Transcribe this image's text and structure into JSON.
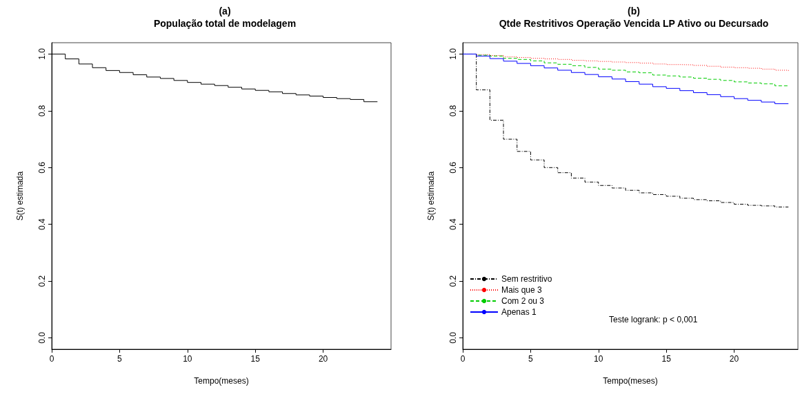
{
  "chart_data": [
    {
      "type": "step",
      "title": "(a)",
      "subtitle": "População total de modelagem",
      "xlabel": "Tempo(meses)",
      "ylabel": "S(t) estimada",
      "xlim": [
        0,
        25
      ],
      "ylim": [
        -0.04,
        1.04
      ],
      "xticks": [
        0,
        5,
        10,
        15,
        20
      ],
      "yticks": [
        {
          "value": 0,
          "label": "0.0"
        },
        {
          "value": 0.2,
          "label": "0.2"
        },
        {
          "value": 0.4,
          "label": "0.4"
        },
        {
          "value": 0.6,
          "label": "0.6"
        },
        {
          "value": 0.8,
          "label": "0.8"
        },
        {
          "value": 1,
          "label": "1.0"
        }
      ],
      "legend": false,
      "series": [
        {
          "color": "#000000",
          "line_style": "solid",
          "x": [
            0,
            1,
            2,
            3,
            4,
            5,
            6,
            7,
            8,
            9,
            10,
            11,
            12,
            13,
            14,
            15,
            16,
            17,
            18,
            19,
            20,
            21,
            22,
            23,
            24
          ],
          "values": [
            1.0,
            0.983,
            0.965,
            0.952,
            0.942,
            0.935,
            0.927,
            0.919,
            0.914,
            0.907,
            0.9,
            0.894,
            0.889,
            0.883,
            0.877,
            0.872,
            0.867,
            0.861,
            0.856,
            0.852,
            0.847,
            0.843,
            0.84,
            0.832,
            0.832
          ]
        }
      ]
    },
    {
      "type": "step",
      "title": "(b)",
      "subtitle": "Qtde Restritivos Operação Vencida LP Ativo ou Decursado",
      "xlabel": "Tempo(meses)",
      "ylabel": "S(t) estimada",
      "xlim": [
        0,
        24.7
      ],
      "ylim": [
        -0.04,
        1.04
      ],
      "xticks": [
        0,
        5,
        10,
        15,
        20
      ],
      "yticks": [
        {
          "value": 0,
          "label": "0.0"
        },
        {
          "value": 0.2,
          "label": "0.2"
        },
        {
          "value": 0.4,
          "label": "0.4"
        },
        {
          "value": 0.6,
          "label": "0.6"
        },
        {
          "value": 0.8,
          "label": "0.8"
        },
        {
          "value": 1,
          "label": "1.0"
        }
      ],
      "legend": "bottom left",
      "annotations": [
        "Teste logrank: p < 0,001"
      ],
      "series": [
        {
          "name": "Sem restritivo",
          "color": "#000000",
          "line_style": "dashdot",
          "x": [
            0,
            1,
            2,
            3,
            4,
            5,
            6,
            7,
            8,
            9,
            10,
            11,
            12,
            13,
            14,
            15,
            16,
            17,
            18,
            19,
            20,
            21,
            22,
            23,
            24
          ],
          "values": [
            1.0,
            0.874,
            0.767,
            0.7,
            0.657,
            0.627,
            0.6,
            0.582,
            0.563,
            0.549,
            0.537,
            0.528,
            0.52,
            0.511,
            0.505,
            0.499,
            0.492,
            0.487,
            0.483,
            0.477,
            0.471,
            0.467,
            0.465,
            0.461,
            0.461
          ]
        },
        {
          "name": "Mais que 3",
          "color": "#ff0000",
          "line_style": "dotted",
          "x": [
            0,
            1,
            2,
            3,
            4,
            5,
            6,
            7,
            8,
            9,
            10,
            11,
            12,
            13,
            14,
            15,
            16,
            17,
            18,
            19,
            20,
            21,
            22,
            23,
            24
          ],
          "values": [
            1.0,
            0.998,
            0.995,
            0.99,
            0.988,
            0.985,
            0.983,
            0.981,
            0.978,
            0.976,
            0.974,
            0.972,
            0.97,
            0.968,
            0.965,
            0.963,
            0.962,
            0.96,
            0.957,
            0.954,
            0.952,
            0.95,
            0.947,
            0.943,
            0.941
          ]
        },
        {
          "name": "Com 2 ou 3",
          "color": "#00cc00",
          "line_style": "dashed",
          "x": [
            0,
            1,
            2,
            3,
            4,
            5,
            6,
            7,
            8,
            9,
            10,
            11,
            12,
            13,
            14,
            15,
            16,
            17,
            18,
            19,
            20,
            21,
            22,
            23,
            24
          ],
          "values": [
            1.0,
            0.996,
            0.993,
            0.985,
            0.981,
            0.976,
            0.969,
            0.964,
            0.959,
            0.953,
            0.947,
            0.943,
            0.937,
            0.934,
            0.926,
            0.923,
            0.919,
            0.915,
            0.911,
            0.907,
            0.902,
            0.898,
            0.895,
            0.888,
            0.888
          ]
        },
        {
          "name": "Apenas 1",
          "color": "#0000ff",
          "line_style": "solid",
          "x": [
            0,
            1,
            2,
            3,
            4,
            5,
            6,
            7,
            8,
            9,
            10,
            11,
            12,
            13,
            14,
            15,
            16,
            17,
            18,
            19,
            20,
            21,
            22,
            23,
            24
          ],
          "values": [
            1.0,
            0.993,
            0.984,
            0.975,
            0.967,
            0.959,
            0.951,
            0.943,
            0.935,
            0.928,
            0.92,
            0.912,
            0.903,
            0.894,
            0.885,
            0.879,
            0.871,
            0.864,
            0.857,
            0.85,
            0.843,
            0.837,
            0.831,
            0.825,
            0.825
          ]
        }
      ]
    }
  ]
}
